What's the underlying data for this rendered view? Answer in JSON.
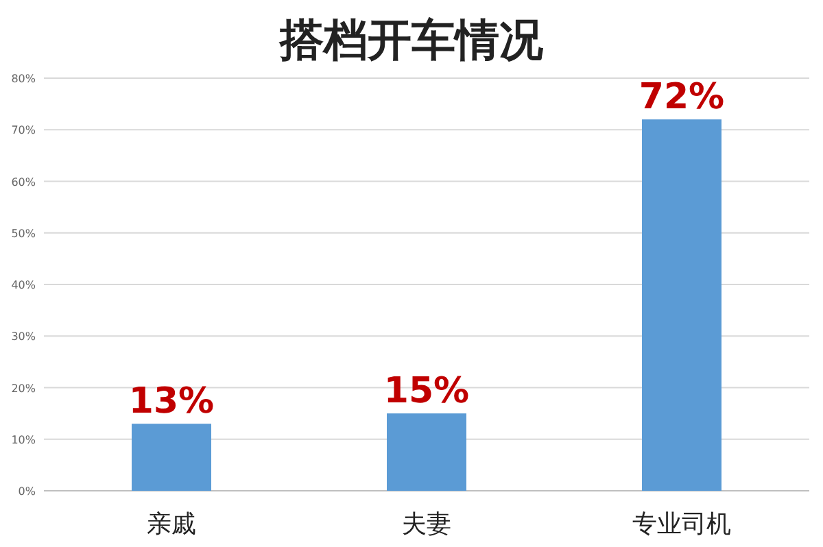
{
  "chart_data": {
    "type": "bar",
    "title": "搭档开车情况",
    "categories": [
      "亲戚",
      "夫妻",
      "专业司机"
    ],
    "values": [
      13,
      15,
      72
    ],
    "color": "#5b9bd5",
    "value_labels": [
      "13%",
      "15%",
      "72%"
    ],
    "ylim": [
      0,
      80
    ],
    "yticks": [
      {
        "value": 0,
        "label": "0%"
      },
      {
        "value": 10,
        "label": "10%"
      },
      {
        "value": 20,
        "label": "20%"
      },
      {
        "value": 30,
        "label": "30%"
      },
      {
        "value": 40,
        "label": "40%"
      },
      {
        "value": 50,
        "label": "50%"
      },
      {
        "value": 60,
        "label": "60%"
      },
      {
        "value": 70,
        "label": "70%"
      },
      {
        "value": 80,
        "label": "80%"
      }
    ],
    "grid": "y"
  }
}
